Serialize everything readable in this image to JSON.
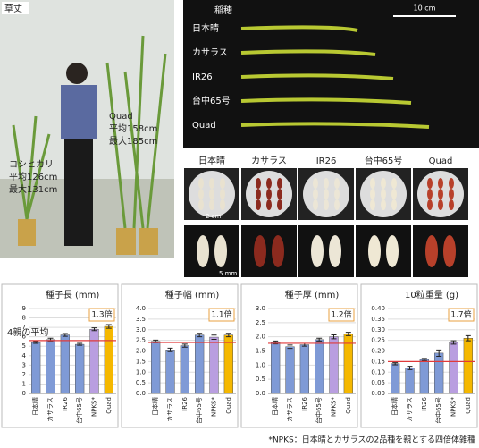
{
  "photos": {
    "height": {
      "title": "草丈",
      "left_lines": [
        "コシヒカリ",
        "平均126cm",
        "最大131cm"
      ],
      "right_lines": [
        "Quad",
        "平均158cm",
        "最大185cm"
      ]
    },
    "panicle": {
      "title": "稲穂",
      "scale": "10 cm",
      "varieties": [
        "日本晴",
        "カサラス",
        "IR26",
        "台中65号",
        "Quad"
      ]
    },
    "seeds": {
      "varieties": [
        "日本晴",
        "カサラス",
        "IR26",
        "台中65号",
        "Quad"
      ],
      "scale_grain": "2 cm",
      "scale_seed": "5 mm"
    }
  },
  "chart_data": [
    {
      "type": "bar",
      "title": "種子長 (mm)",
      "categories": [
        "日本晴",
        "カサラス",
        "IR26",
        "台中65号",
        "NPKS*",
        "Quad"
      ],
      "values": [
        5.4,
        5.7,
        6.2,
        5.2,
        6.8,
        7.1
      ],
      "errors": [
        0.1,
        0.15,
        0.15,
        0.1,
        0.15,
        0.2
      ],
      "colors": [
        "#7f9ad6",
        "#7f9ad6",
        "#7f9ad6",
        "#7f9ad6",
        "#b99ee0",
        "#f5b800"
      ],
      "ylim": [
        0,
        9
      ],
      "yticks": [
        0,
        1,
        2,
        3,
        4,
        5,
        6,
        7,
        8,
        9
      ],
      "reference_line": {
        "value": 5.6,
        "label": "4親の平均",
        "color": "#e03a3a"
      },
      "annotation": "1.3倍",
      "grid": true
    },
    {
      "type": "bar",
      "title": "種子幅 (mm)",
      "categories": [
        "日本晴",
        "カサラス",
        "IR26",
        "台中65号",
        "NPKS*",
        "Quad"
      ],
      "values": [
        2.45,
        2.05,
        2.25,
        2.75,
        2.65,
        2.75
      ],
      "errors": [
        0.06,
        0.08,
        0.07,
        0.08,
        0.1,
        0.08
      ],
      "colors": [
        "#7f9ad6",
        "#7f9ad6",
        "#7f9ad6",
        "#7f9ad6",
        "#b99ee0",
        "#f5b800"
      ],
      "ylim": [
        0,
        4
      ],
      "yticks": [
        {
          "value": 0,
          "label": "0.0"
        },
        0.5,
        {
          "value": 1,
          "label": "1.0"
        },
        1.5,
        {
          "value": 2,
          "label": "2.0"
        },
        2.5,
        {
          "value": 3,
          "label": "3.0"
        },
        3.5,
        {
          "value": 4,
          "label": "4.0"
        }
      ],
      "reference_line": {
        "value": 2.4,
        "color": "#e03a3a"
      },
      "annotation": "1.1倍",
      "grid": true
    },
    {
      "type": "bar",
      "title": "種子厚 (mm)",
      "categories": [
        "日本晴",
        "カサラス",
        "IR26",
        "台中65号",
        "NPKS*",
        "Quad"
      ],
      "values": [
        1.8,
        1.65,
        1.72,
        1.9,
        2.0,
        2.1
      ],
      "errors": [
        0.05,
        0.06,
        0.05,
        0.05,
        0.07,
        0.06
      ],
      "colors": [
        "#7f9ad6",
        "#7f9ad6",
        "#7f9ad6",
        "#7f9ad6",
        "#b99ee0",
        "#f5b800"
      ],
      "ylim": [
        0,
        3
      ],
      "yticks": [
        {
          "value": 0,
          "label": "0.0"
        },
        0.5,
        {
          "value": 1,
          "label": "1.0"
        },
        1.5,
        {
          "value": 2,
          "label": "2.0"
        },
        2.5,
        {
          "value": 3,
          "label": "3.0"
        }
      ],
      "reference_line": {
        "value": 1.77,
        "color": "#e03a3a"
      },
      "annotation": "1.2倍",
      "grid": true
    },
    {
      "type": "bar",
      "title": "10粒重量 (g)",
      "categories": [
        "日本晴",
        "カサラス",
        "IR26",
        "台中65号",
        "NPKS*",
        "Quad"
      ],
      "values": [
        0.14,
        0.12,
        0.16,
        0.19,
        0.24,
        0.26
      ],
      "errors": [
        0.005,
        0.008,
        0.005,
        0.015,
        0.008,
        0.012
      ],
      "colors": [
        "#7f9ad6",
        "#7f9ad6",
        "#7f9ad6",
        "#7f9ad6",
        "#b99ee0",
        "#f5b800"
      ],
      "ylim": [
        0,
        0.4
      ],
      "yticks": [
        {
          "value": 0,
          "label": "0.00"
        },
        0.05,
        {
          "value": 0.1,
          "label": "0.10"
        },
        0.15,
        {
          "value": 0.2,
          "label": "0.20"
        },
        0.25,
        {
          "value": 0.3,
          "label": "0.30"
        },
        0.35,
        {
          "value": 0.4,
          "label": "0.40"
        }
      ],
      "reference_line": {
        "value": 0.15,
        "color": "#e03a3a"
      },
      "annotation": "1.7倍",
      "grid": true
    }
  ],
  "footnote": "*NPKS：日本晴とカサラスの2品種を親とする四倍体雑種"
}
